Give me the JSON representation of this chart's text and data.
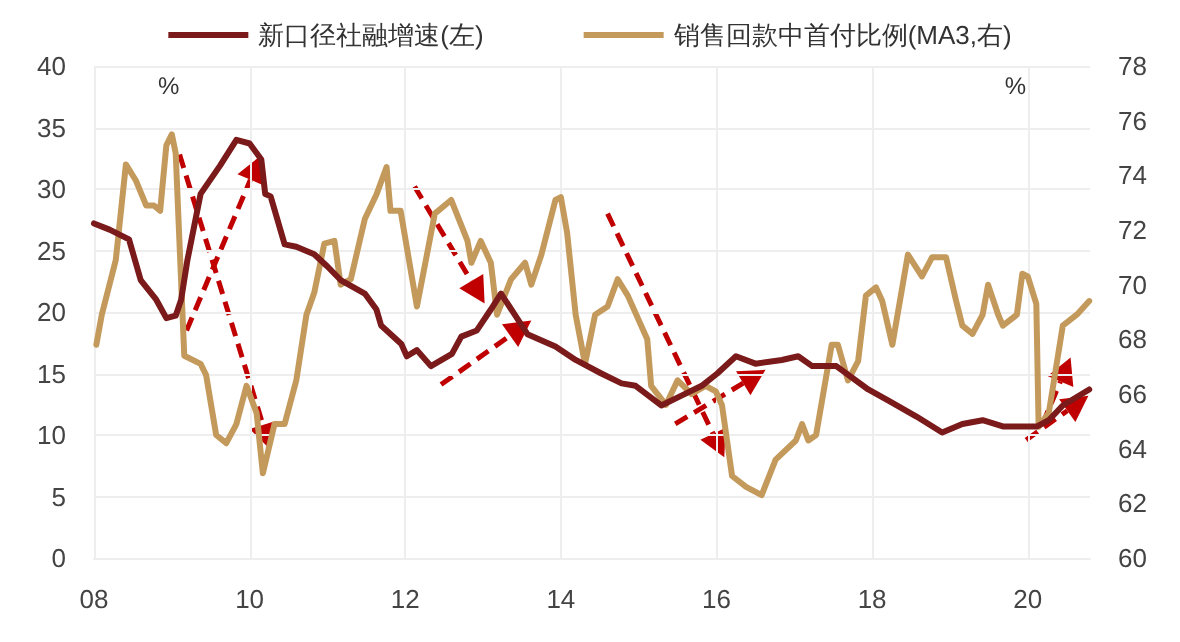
{
  "chart_data": {
    "type": "line",
    "ylabel": "%",
    "y2label": "%",
    "xlim": [
      2008,
      2020.8
    ],
    "xticks": [
      {
        "value": 2008,
        "label": "08"
      },
      {
        "value": 2010,
        "label": "10"
      },
      {
        "value": 2012,
        "label": "12"
      },
      {
        "value": 2014,
        "label": "14"
      },
      {
        "value": 2016,
        "label": "16"
      },
      {
        "value": 2018,
        "label": "18"
      },
      {
        "value": 2020,
        "label": "20"
      }
    ],
    "ylim": [
      0,
      40
    ],
    "yticks": [
      0,
      5,
      10,
      15,
      20,
      25,
      30,
      35,
      40
    ],
    "y2lim": [
      60,
      78
    ],
    "y2ticks": [
      60,
      62,
      64,
      66,
      68,
      70,
      72,
      74,
      76,
      78
    ],
    "grid": true,
    "legend": "top",
    "line_style": "solid",
    "marker": "none",
    "series": [
      {
        "name": "新口径社融增速(左)",
        "color": "#7b1a1a",
        "x": [
          2008.0,
          2008.2,
          2008.45,
          2008.6,
          2008.8,
          2008.93,
          2009.05,
          2009.12,
          2009.2,
          2009.37,
          2009.62,
          2009.83,
          2010.0,
          2010.15,
          2010.2,
          2010.27,
          2010.45,
          2010.6,
          2010.83,
          2011.0,
          2011.17,
          2011.48,
          2011.63,
          2011.69,
          2011.95,
          2012.02,
          2012.15,
          2012.33,
          2012.6,
          2012.72,
          2012.92,
          2013.1,
          2013.23,
          2013.57,
          2013.93,
          2014.19,
          2014.52,
          2014.78,
          2014.96,
          2015.29,
          2015.55,
          2015.81,
          2016.01,
          2016.25,
          2016.5,
          2016.84,
          2017.05,
          2017.23,
          2017.54,
          2017.95,
          2018.21,
          2018.57,
          2018.9,
          2019.16,
          2019.42,
          2019.68,
          2020.12,
          2020.27,
          2020.45,
          2020.79
        ],
        "values": [
          27.2,
          26.7,
          25.9,
          22.6,
          21.0,
          19.5,
          19.7,
          21.0,
          24.2,
          29.6,
          31.9,
          34.0,
          33.7,
          32.4,
          29.6,
          29.4,
          25.5,
          25.3,
          24.7,
          23.7,
          22.6,
          21.5,
          20.2,
          18.9,
          17.4,
          16.4,
          16.9,
          15.6,
          16.6,
          18.0,
          18.5,
          20.2,
          21.5,
          18.2,
          17.2,
          16.1,
          15.0,
          14.2,
          14.0,
          12.4,
          13.2,
          14.0,
          15.0,
          16.4,
          15.8,
          16.1,
          16.4,
          15.6,
          15.6,
          13.7,
          12.8,
          11.5,
          10.2,
          10.9,
          11.2,
          10.7,
          10.7,
          11.2,
          12.4,
          13.7
        ]
      },
      {
        "name": "销售回款中首付比例(MA3,右)",
        "color": "#c49a5c",
        "axis": "y2",
        "x": [
          2008.03,
          2008.1,
          2008.28,
          2008.41,
          2008.54,
          2008.67,
          2008.77,
          2008.85,
          2008.93,
          2009.0,
          2009.05,
          2009.16,
          2009.37,
          2009.44,
          2009.57,
          2009.7,
          2009.83,
          2009.96,
          2010.09,
          2010.17,
          2010.32,
          2010.45,
          2010.6,
          2010.73,
          2010.83,
          2010.96,
          2011.09,
          2011.17,
          2011.3,
          2011.48,
          2011.63,
          2011.76,
          2011.81,
          2011.94,
          2012.15,
          2012.38,
          2012.59,
          2012.8,
          2012.85,
          2012.97,
          2013.1,
          2013.18,
          2013.36,
          2013.54,
          2013.62,
          2013.75,
          2013.93,
          2014.0,
          2014.08,
          2014.19,
          2014.31,
          2014.44,
          2014.6,
          2014.73,
          2014.86,
          2015.11,
          2015.16,
          2015.35,
          2015.5,
          2015.68,
          2015.86,
          2015.99,
          2016.07,
          2016.2,
          2016.38,
          2016.58,
          2016.76,
          2017.02,
          2017.1,
          2017.18,
          2017.28,
          2017.48,
          2017.56,
          2017.69,
          2017.82,
          2017.92,
          2018.05,
          2018.13,
          2018.26,
          2018.46,
          2018.64,
          2018.77,
          2018.95,
          2019.08,
          2019.16,
          2019.29,
          2019.42,
          2019.49,
          2019.62,
          2019.68,
          2019.86,
          2019.93,
          2020.0,
          2020.11,
          2020.14,
          2020.27,
          2020.45,
          2020.63,
          2020.79
        ],
        "values": [
          67.8,
          68.9,
          70.9,
          74.4,
          73.8,
          72.9,
          72.9,
          72.7,
          75.1,
          75.5,
          74.8,
          67.4,
          67.1,
          66.7,
          64.5,
          64.2,
          64.9,
          66.3,
          65.3,
          63.1,
          64.9,
          64.9,
          66.5,
          68.9,
          69.7,
          71.5,
          71.6,
          70.0,
          70.2,
          72.4,
          73.3,
          74.3,
          72.7,
          72.7,
          69.2,
          72.6,
          73.1,
          71.6,
          70.8,
          71.6,
          70.8,
          68.9,
          70.2,
          70.8,
          70.0,
          71.1,
          73.1,
          73.2,
          71.9,
          68.9,
          67.1,
          68.9,
          69.2,
          70.2,
          69.6,
          68.0,
          66.3,
          65.6,
          66.5,
          66.0,
          66.3,
          66.1,
          65.6,
          63.0,
          62.6,
          62.3,
          63.6,
          64.3,
          64.9,
          64.3,
          64.5,
          67.8,
          67.8,
          66.5,
          67.2,
          69.6,
          69.9,
          69.4,
          67.8,
          71.1,
          70.3,
          71.0,
          71.0,
          69.4,
          68.5,
          68.2,
          68.9,
          70.0,
          68.9,
          68.5,
          68.9,
          70.4,
          70.3,
          69.3,
          64.8,
          65.3,
          68.5,
          68.9,
          69.4
        ]
      }
    ]
  }
}
